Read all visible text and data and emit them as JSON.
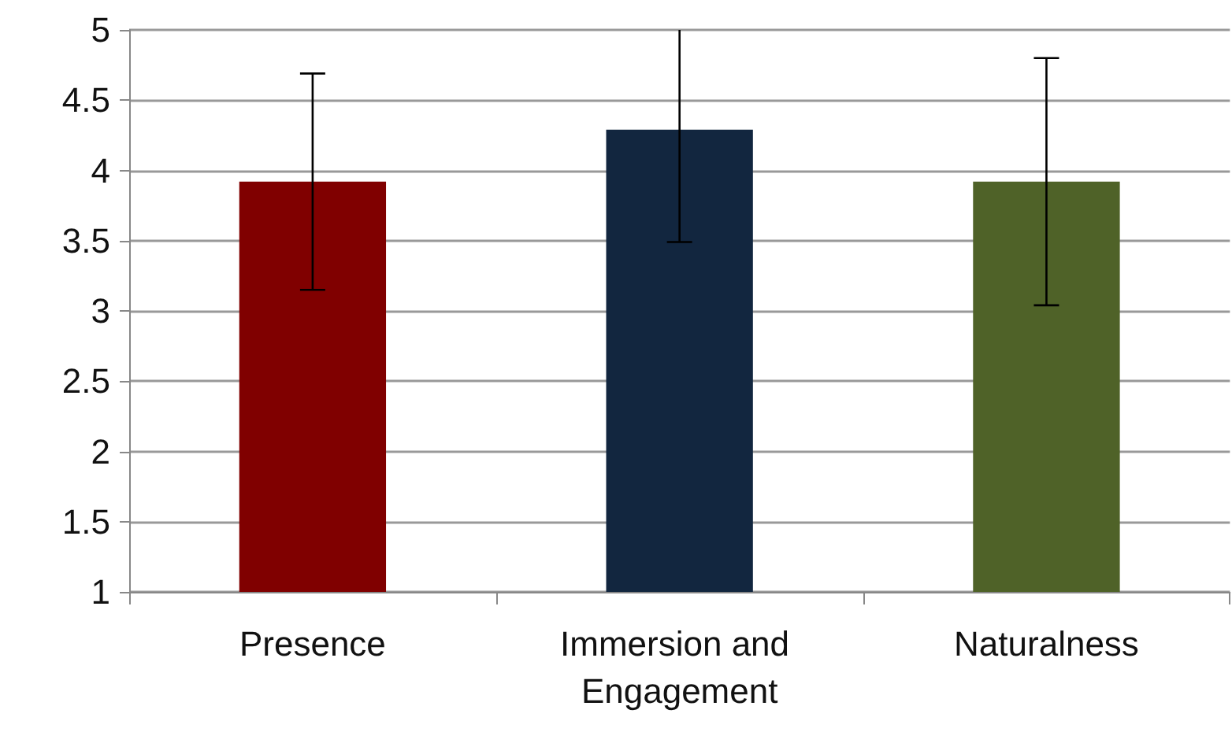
{
  "chart_data": {
    "type": "bar",
    "categories": [
      "Presence",
      "Immersion and Engagement",
      "Naturalness"
    ],
    "values": [
      3.92,
      4.29,
      3.92
    ],
    "colors": [
      "#800000",
      "#12263f",
      "#4f6228"
    ],
    "errors": [
      0.77,
      [
        3.49,
        5
      ],
      0.88
    ],
    "ylim": [
      1,
      5
    ],
    "yticks": [
      1,
      1.5,
      2,
      2.5,
      3,
      3.5,
      4,
      4.5,
      5
    ],
    "grid": "y"
  }
}
